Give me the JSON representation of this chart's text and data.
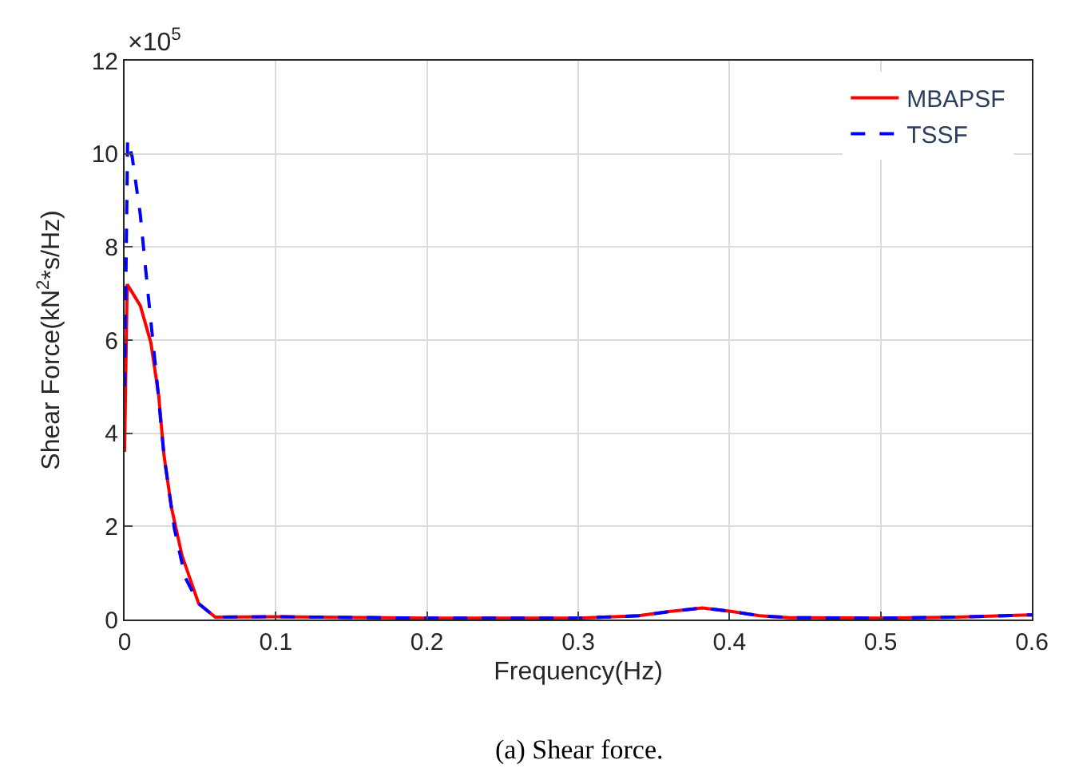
{
  "chart_data": {
    "type": "line",
    "xlabel": "Frequency(Hz)",
    "ylabel": "Shear Force(kN$^{2}$*s/Hz)",
    "annotations": [
      "×10$^{5}$",
      "(a) Shear force."
    ],
    "xlim": [
      0,
      0.6
    ],
    "ylim": [
      0,
      12
    ],
    "xticks": [
      0,
      0.1,
      0.2,
      0.3,
      0.4,
      0.5,
      0.6
    ],
    "yticks": [
      0,
      2,
      4,
      6,
      8,
      10,
      12
    ],
    "grid": true,
    "legend": "top right",
    "series": [
      {
        "name": "MBAPSF",
        "color": "#ff0000",
        "line_style": "solid",
        "x": [
          0,
          0.0017,
          0.0104,
          0.0174,
          0.0226,
          0.026,
          0.031,
          0.038,
          0.049,
          0.06,
          0.1,
          0.2,
          0.3,
          0.34,
          0.36,
          0.382,
          0.4,
          0.42,
          0.44,
          0.5,
          0.55,
          0.6
        ],
        "values": [
          3.6,
          7.2,
          6.74,
          5.94,
          4.8,
          3.54,
          2.4,
          1.37,
          0.34,
          0.05,
          0.06,
          0.03,
          0.03,
          0.08,
          0.17,
          0.25,
          0.18,
          0.08,
          0.04,
          0.03,
          0.05,
          0.1
        ]
      },
      {
        "name": "TSSF",
        "color": "#0000ff",
        "line_style": "dashed",
        "x": [
          0,
          0.002,
          0.005,
          0.0104,
          0.0156,
          0.021,
          0.026,
          0.033,
          0.04,
          0.049,
          0.06,
          0.1,
          0.2,
          0.3,
          0.34,
          0.36,
          0.382,
          0.4,
          0.42,
          0.44,
          0.5,
          0.55,
          0.6
        ],
        "values": [
          5.0,
          10.3,
          9.94,
          8.69,
          6.97,
          5.26,
          3.54,
          1.94,
          0.91,
          0.34,
          0.05,
          0.06,
          0.03,
          0.03,
          0.08,
          0.17,
          0.25,
          0.18,
          0.08,
          0.04,
          0.03,
          0.05,
          0.1
        ]
      }
    ]
  }
}
